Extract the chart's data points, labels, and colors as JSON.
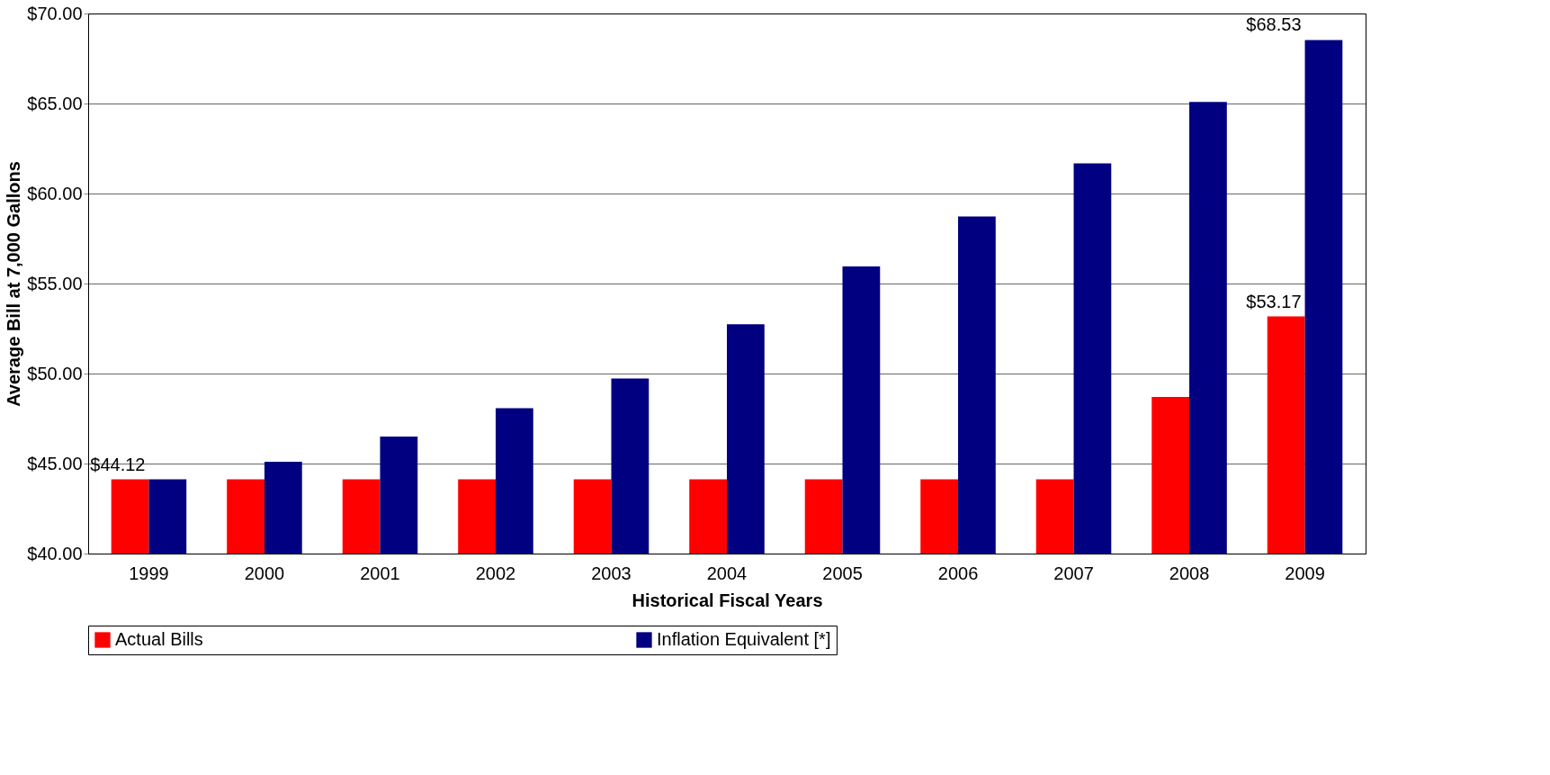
{
  "chart_data": {
    "type": "bar",
    "xlabel": "Historical Fiscal Years",
    "ylabel": "Average Bill at 7,000 Gallons",
    "categories": [
      "1999",
      "2000",
      "2001",
      "2002",
      "2003",
      "2004",
      "2005",
      "2006",
      "2007",
      "2008",
      "2009"
    ],
    "series": [
      {
        "name": "Actual Bills",
        "color": "#ff0000",
        "values": [
          44.12,
          44.12,
          44.12,
          44.12,
          44.12,
          44.12,
          44.12,
          44.12,
          44.12,
          48.7,
          53.17
        ]
      },
      {
        "name": "Inflation Equivalent [*]",
        "color": "#000080",
        "values": [
          44.12,
          45.1,
          46.5,
          48.07,
          49.72,
          52.74,
          55.95,
          58.72,
          61.68,
          65.09,
          68.53
        ]
      }
    ],
    "ylim": [
      40,
      70
    ],
    "yticks": [
      {
        "value": 40,
        "label": "$40.00"
      },
      {
        "value": 45,
        "label": "$45.00"
      },
      {
        "value": 50,
        "label": "$50.00"
      },
      {
        "value": 55,
        "label": "$55.00"
      },
      {
        "value": 60,
        "label": "$60.00"
      },
      {
        "value": 65,
        "label": "$65.00"
      },
      {
        "value": 70,
        "label": "$70.00"
      }
    ],
    "grid": "y",
    "legend": "bottom",
    "annotations": [
      {
        "text": "$44.12",
        "x": "1999",
        "y": 44.12
      },
      {
        "text": "$53.17",
        "x": "2009",
        "y": 53.17
      },
      {
        "text": "$68.53",
        "x": "2009",
        "y": 68.53
      }
    ]
  }
}
